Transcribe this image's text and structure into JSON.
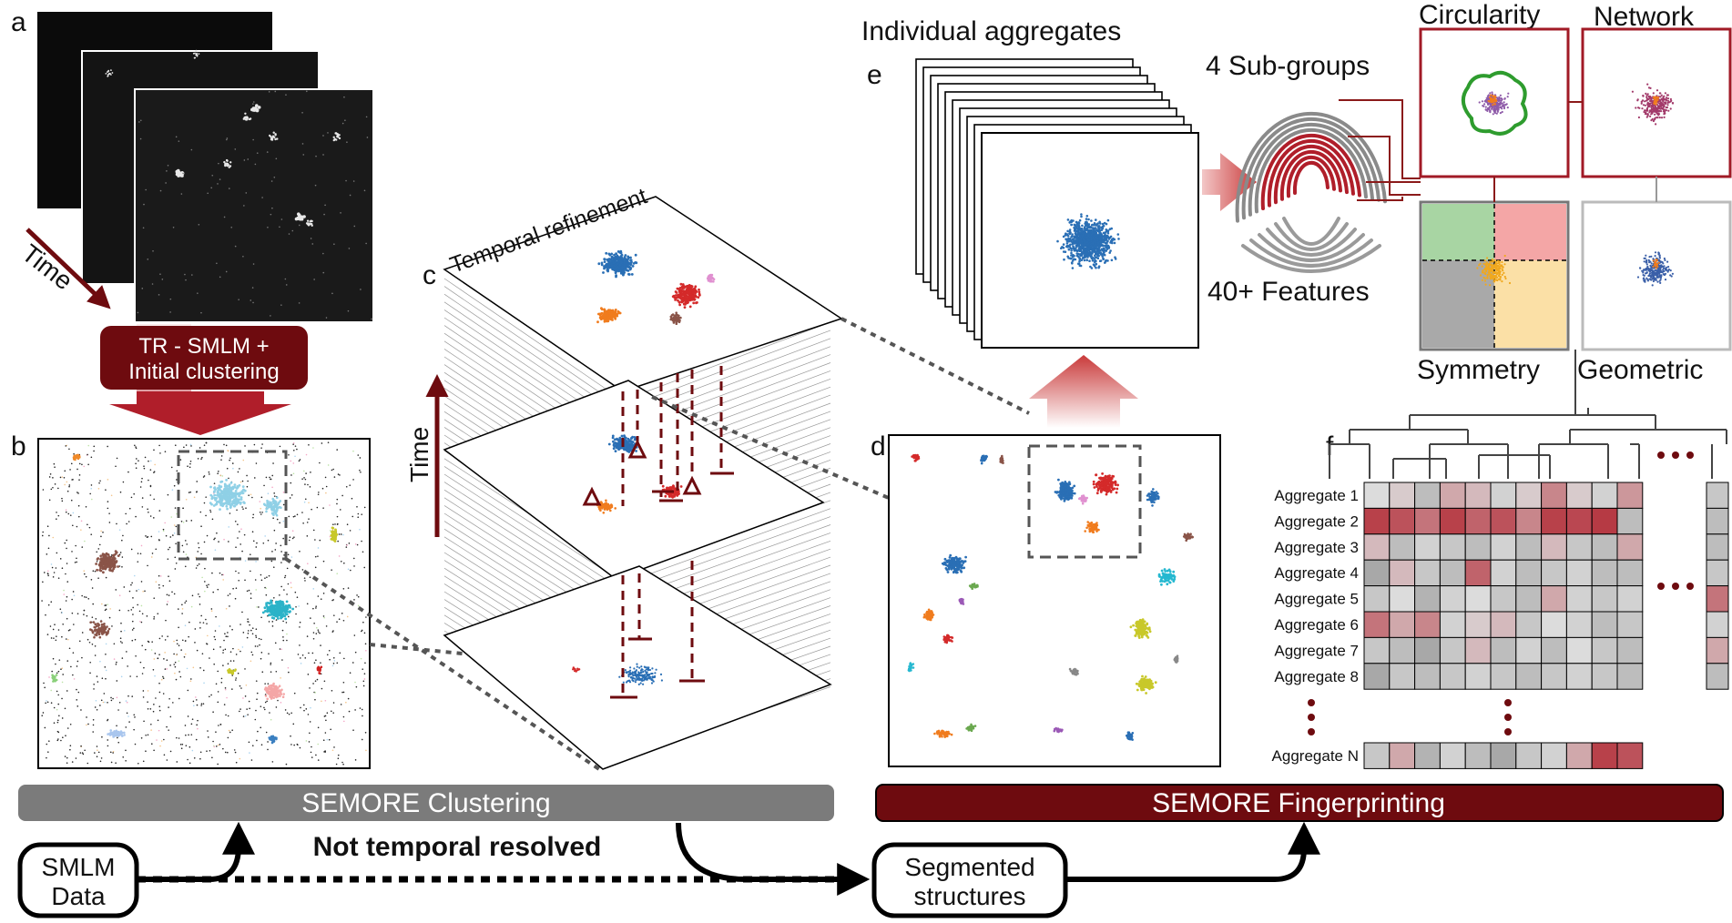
{
  "panel_letters": {
    "a": "a",
    "b": "b",
    "c": "c",
    "d": "d",
    "e": "e",
    "f": "f"
  },
  "panel_a": {
    "time_label": "Time",
    "process_box": "TR - SMLM +",
    "process_box_line2": "Initial clustering"
  },
  "panel_c": {
    "stack_title": "Temporal refinement",
    "time_label": "Time"
  },
  "panel_e": {
    "title": "Individual aggregates"
  },
  "fingerprint": {
    "subgroups_label": "4 Sub-groups",
    "features_label": "40+ Features"
  },
  "feature_panels": {
    "circularity": "Circularity",
    "network": "Network",
    "symmetry": "Symmetry",
    "geometric": "Geometric"
  },
  "heatmap": {
    "rows": [
      "Aggregate 1",
      "Aggregate 2",
      "Aggregate 3",
      "Aggregate 4",
      "Aggregate 5",
      "Aggregate 6",
      "Aggregate 7",
      "Aggregate 8"
    ],
    "last_row": "Aggregate N",
    "values": [
      [
        0.45,
        0.5,
        0.3,
        0.6,
        0.55,
        0.4,
        0.5,
        0.7,
        0.5,
        0.4,
        0.65
      ],
      [
        0.9,
        0.85,
        0.75,
        0.9,
        0.8,
        0.85,
        0.7,
        0.9,
        0.88,
        0.92,
        0.3
      ],
      [
        0.55,
        0.3,
        0.4,
        0.35,
        0.3,
        0.4,
        0.3,
        0.55,
        0.35,
        0.3,
        0.6
      ],
      [
        0.2,
        0.55,
        0.35,
        0.3,
        0.8,
        0.4,
        0.3,
        0.35,
        0.4,
        0.3,
        0.3
      ],
      [
        0.35,
        0.45,
        0.25,
        0.4,
        0.45,
        0.35,
        0.3,
        0.6,
        0.4,
        0.35,
        0.4
      ],
      [
        0.75,
        0.6,
        0.7,
        0.4,
        0.5,
        0.55,
        0.35,
        0.45,
        0.4,
        0.3,
        0.35
      ],
      [
        0.35,
        0.3,
        0.2,
        0.35,
        0.55,
        0.3,
        0.4,
        0.3,
        0.45,
        0.35,
        0.3
      ],
      [
        0.2,
        0.35,
        0.3,
        0.35,
        0.4,
        0.35,
        0.3,
        0.35,
        0.4,
        0.35,
        0.3
      ]
    ],
    "extra_column": [
      0.35,
      0.3,
      0.3,
      0.35,
      0.75,
      0.4,
      0.6,
      0.3
    ],
    "last_values": [
      0.35,
      0.6,
      0.25,
      0.4,
      0.3,
      0.2,
      0.35,
      0.4,
      0.6,
      0.9,
      0.85
    ],
    "colors": {
      "low": "#7f7f7f",
      "mid": "#dcdcdc",
      "high": "#b01e2a"
    }
  },
  "bars": {
    "clustering": "SEMORE Clustering",
    "fingerprinting": "SEMORE Fingerprinting"
  },
  "flow": {
    "smlm": "SMLM",
    "smlm_line2": "Data",
    "segmented": "Segmented",
    "segmented_line2": "structures",
    "not_temporal": "Not temporal resolved"
  },
  "colors": {
    "dark_red": "#6e0b0f",
    "red": "#b01e2a",
    "gray_bar": "#7b7b7b",
    "blue": "#2a6fb5"
  }
}
